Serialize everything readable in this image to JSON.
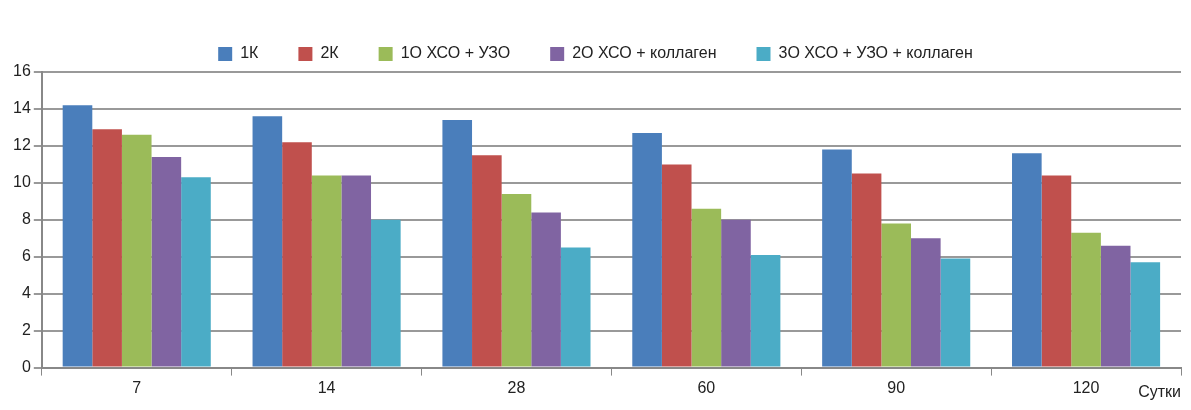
{
  "chart_data": {
    "type": "bar",
    "xlabel": "Сутки",
    "categories": [
      "7",
      "14",
      "28",
      "60",
      "90",
      "120"
    ],
    "series": [
      {
        "name": "1К",
        "color": "#4a7ebb",
        "values": [
          14.2,
          13.6,
          13.4,
          12.7,
          11.8,
          11.6
        ]
      },
      {
        "name": "2К",
        "color": "#c0504d",
        "values": [
          12.9,
          12.2,
          11.5,
          11.0,
          10.5,
          10.4
        ]
      },
      {
        "name": "1О ХСО + УЗО",
        "color": "#9bbb59",
        "values": [
          12.6,
          10.4,
          9.4,
          8.6,
          7.8,
          7.3
        ]
      },
      {
        "name": "2О ХСО + коллаген",
        "color": "#8064a2",
        "values": [
          11.4,
          10.4,
          8.4,
          8.0,
          7.0,
          6.6
        ]
      },
      {
        "name": "3О ХСО + УЗО + коллаген",
        "color": "#4bacc6",
        "values": [
          10.3,
          8.0,
          6.5,
          6.1,
          5.9,
          5.7
        ]
      }
    ],
    "ylim": [
      0,
      16
    ],
    "yticks": [
      0,
      2,
      4,
      6,
      8,
      10,
      12,
      14,
      16
    ],
    "grid": "y",
    "legend": "top"
  }
}
